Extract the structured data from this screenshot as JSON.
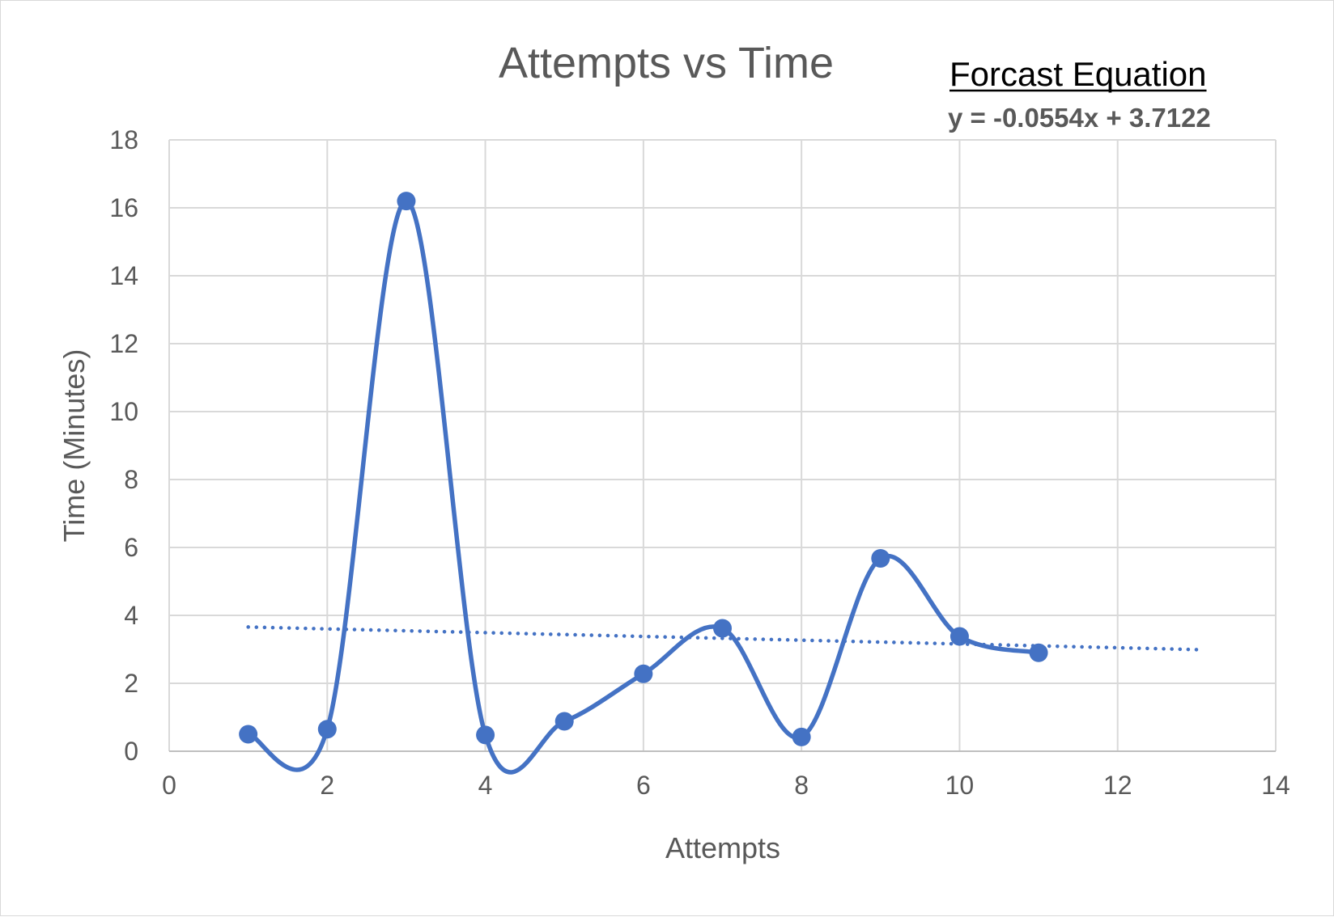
{
  "chart_data": {
    "type": "scatter",
    "title": "Attempts vs Time",
    "xlabel": "Attempts",
    "ylabel": "Time (Minutes)",
    "xlim": [
      0,
      14
    ],
    "ylim": [
      0,
      18
    ],
    "x_ticks": [
      0,
      2,
      4,
      6,
      8,
      10,
      12,
      14
    ],
    "y_ticks": [
      0,
      2,
      4,
      6,
      8,
      10,
      12,
      14,
      16,
      18
    ],
    "grid": true,
    "legend": "none",
    "series": [
      {
        "style": "smooth line with markers",
        "color": "#4472c4",
        "x": [
          1,
          2,
          3,
          4,
          5,
          6,
          7,
          8,
          9,
          10,
          11
        ],
        "y": [
          0.5,
          0.65,
          16.2,
          0.48,
          0.88,
          2.28,
          3.62,
          0.42,
          5.68,
          3.38,
          2.9
        ]
      }
    ],
    "trendline": {
      "style": "dotted linear",
      "color": "#4472c4",
      "slope": -0.0554,
      "intercept": 3.7122,
      "x_range": [
        1,
        13
      ]
    },
    "annotation": {
      "heading": "Forcast Equation",
      "equation": "y = -0.0554x + 3.7122"
    }
  }
}
